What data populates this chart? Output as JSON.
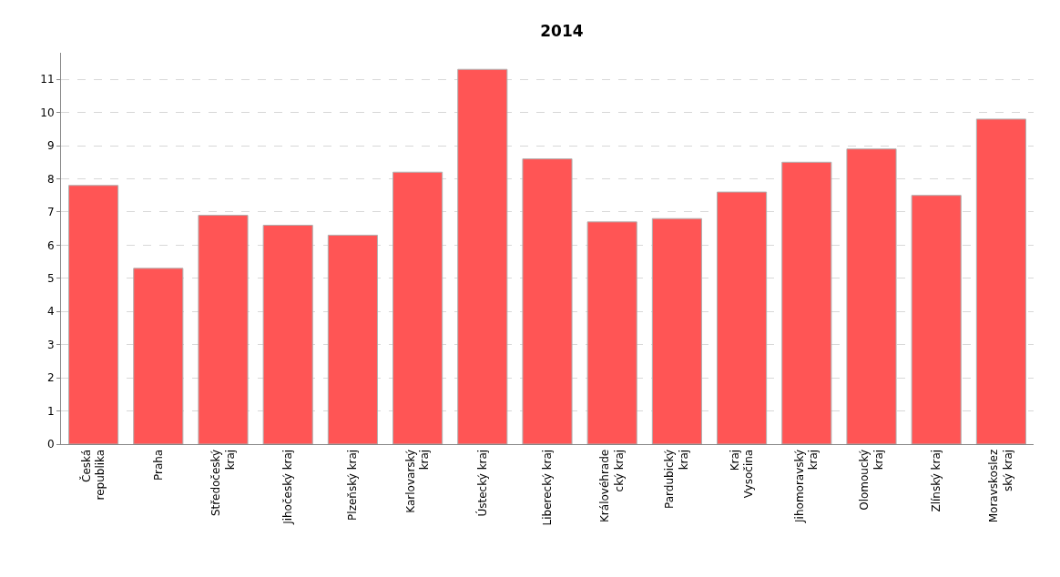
{
  "chart_data": {
    "type": "bar",
    "title": "2014",
    "categories": [
      "Česká\nrepublika",
      "Praha",
      "Středočeský\nkraj",
      "Jihočeský kraj",
      "Plzeňský kraj",
      "Karlovarský\nkraj",
      "Ústecký kraj",
      "Liberecký kraj",
      "Královéhrade\ncký kraj",
      "Pardubický\nkraj",
      "Kraj\nVysočina",
      "Jihomoravský\nkraj",
      "Olomoucký\nkraj",
      "Zlínský kraj",
      "Moravskoslez\nský kraj"
    ],
    "values": [
      7.8,
      5.3,
      6.9,
      6.6,
      6.3,
      8.2,
      11.3,
      8.6,
      6.7,
      6.8,
      7.6,
      8.5,
      8.9,
      7.5,
      9.8
    ],
    "color": "#ff5555",
    "ylim": [
      0,
      11.8
    ],
    "yticks": [
      0,
      1,
      2,
      3,
      4,
      5,
      6,
      7,
      8,
      9,
      10,
      11
    ],
    "grid": "y"
  }
}
